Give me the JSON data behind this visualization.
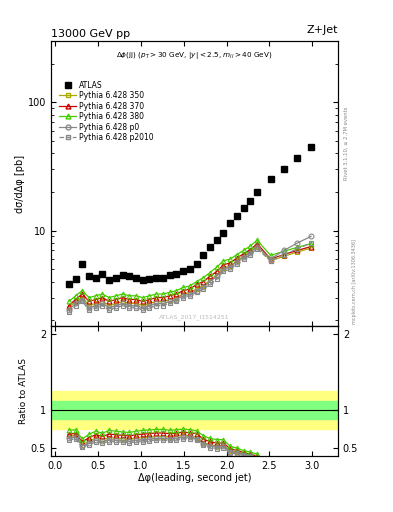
{
  "title_top": "13000 GeV pp",
  "title_right": "Z+Jet",
  "watermark": "ATLAS_2017_I1514251",
  "rivet_text": "Rivet 3.1.10, ≥ 2.7M events",
  "arxiv_text": "mcplots.cern.ch [arXiv:1306.3436]",
  "xlabel": "Δφ(leading, second jet)",
  "ylabel_top": "dσ/dΔφ [pb]",
  "ylabel_bot": "Ratio to ATLAS",
  "atlas_x": [
    0.157,
    0.236,
    0.314,
    0.393,
    0.471,
    0.55,
    0.628,
    0.707,
    0.785,
    0.864,
    0.942,
    1.021,
    1.099,
    1.178,
    1.256,
    1.335,
    1.413,
    1.492,
    1.571,
    1.649,
    1.728,
    1.806,
    1.885,
    1.963,
    2.042,
    2.12,
    2.199,
    2.278,
    2.356,
    2.513,
    2.67,
    2.827,
    2.985
  ],
  "atlas_y": [
    3.8,
    4.2,
    5.5,
    4.4,
    4.3,
    4.6,
    4.1,
    4.3,
    4.5,
    4.4,
    4.3,
    4.1,
    4.2,
    4.3,
    4.3,
    4.5,
    4.6,
    4.8,
    5.0,
    5.5,
    6.5,
    7.5,
    8.5,
    9.5,
    11.5,
    13.0,
    15.0,
    17.0,
    20.0,
    25.0,
    30.0,
    37.0,
    45.0
  ],
  "py350_x": [
    0.157,
    0.236,
    0.314,
    0.393,
    0.471,
    0.55,
    0.628,
    0.707,
    0.785,
    0.864,
    0.942,
    1.021,
    1.099,
    1.178,
    1.256,
    1.335,
    1.413,
    1.492,
    1.571,
    1.649,
    1.728,
    1.806,
    1.885,
    1.963,
    2.042,
    2.12,
    2.199,
    2.278,
    2.356,
    2.513,
    2.67,
    2.827,
    2.985
  ],
  "py350_y": [
    2.5,
    2.8,
    3.0,
    2.6,
    2.7,
    2.8,
    2.6,
    2.7,
    2.8,
    2.7,
    2.7,
    2.6,
    2.7,
    2.8,
    2.8,
    2.9,
    3.0,
    3.2,
    3.3,
    3.5,
    3.7,
    4.1,
    4.5,
    5.1,
    5.3,
    5.8,
    6.3,
    6.8,
    7.6,
    5.8,
    6.3,
    6.8,
    7.3
  ],
  "py370_y": [
    2.6,
    2.9,
    3.2,
    2.8,
    2.9,
    3.0,
    2.8,
    2.9,
    3.0,
    2.9,
    2.9,
    2.8,
    2.9,
    3.0,
    3.0,
    3.1,
    3.2,
    3.4,
    3.5,
    3.8,
    4.0,
    4.4,
    4.8,
    5.4,
    5.6,
    6.1,
    6.6,
    7.1,
    7.9,
    6.0,
    6.5,
    7.0,
    7.5
  ],
  "py380_y": [
    2.8,
    3.1,
    3.4,
    3.0,
    3.1,
    3.2,
    3.0,
    3.1,
    3.2,
    3.1,
    3.1,
    3.0,
    3.1,
    3.2,
    3.2,
    3.3,
    3.4,
    3.6,
    3.7,
    4.0,
    4.3,
    4.7,
    5.2,
    5.8,
    6.0,
    6.5,
    7.0,
    7.6,
    8.4,
    6.4,
    6.9,
    7.4,
    7.9
  ],
  "pyp0_y": [
    2.4,
    2.7,
    2.9,
    2.5,
    2.6,
    2.7,
    2.5,
    2.6,
    2.7,
    2.6,
    2.6,
    2.5,
    2.6,
    2.7,
    2.7,
    2.8,
    2.9,
    3.1,
    3.2,
    3.4,
    3.6,
    4.0,
    4.4,
    5.0,
    5.2,
    5.7,
    6.2,
    6.7,
    7.5,
    6.0,
    7.0,
    8.0,
    9.0
  ],
  "pyp2010_y": [
    2.3,
    2.6,
    2.8,
    2.4,
    2.5,
    2.6,
    2.4,
    2.5,
    2.6,
    2.5,
    2.5,
    2.4,
    2.5,
    2.6,
    2.6,
    2.7,
    2.8,
    3.0,
    3.1,
    3.3,
    3.5,
    3.8,
    4.2,
    4.8,
    5.0,
    5.5,
    6.0,
    6.5,
    7.2,
    5.8,
    6.5,
    7.2,
    8.0
  ],
  "color_350": "#aaaa00",
  "color_370": "#cc0000",
  "color_380": "#44cc00",
  "color_p0": "#888888",
  "color_p2010": "#888888",
  "band_green_inner": [
    0.88,
    1.12
  ],
  "band_yellow_outer": [
    0.75,
    1.25
  ],
  "ratio_ylim": [
    0.4,
    2.1
  ],
  "main_ylim": [
    1.8,
    300
  ],
  "xlim": [
    -0.05,
    3.3
  ]
}
